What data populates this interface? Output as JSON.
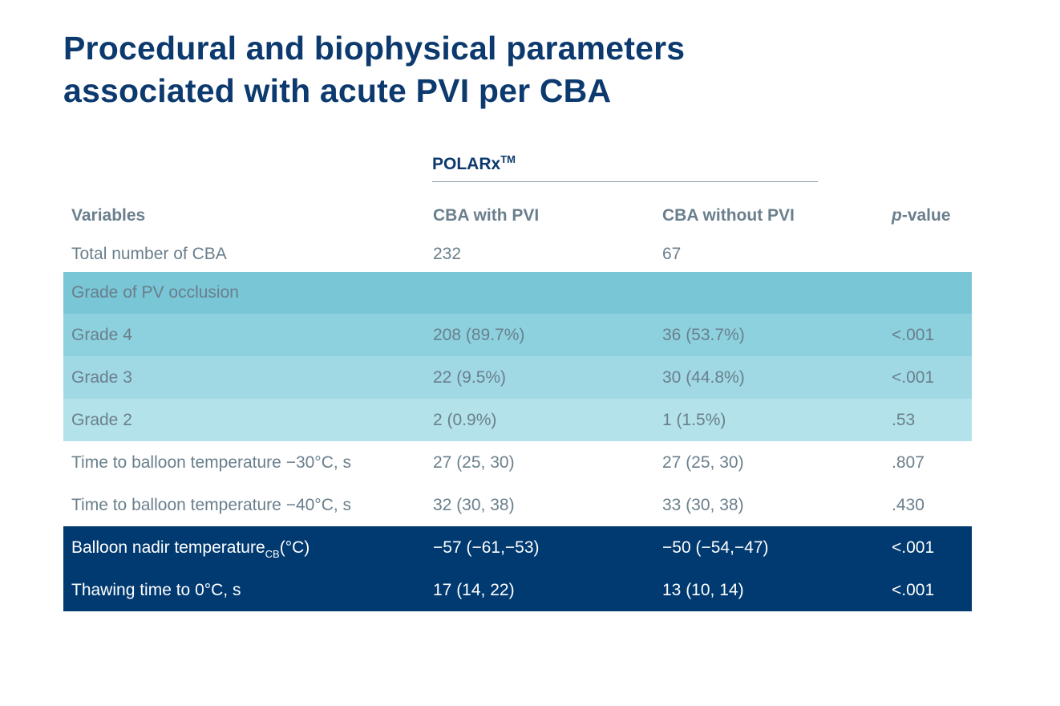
{
  "title": {
    "line1": "Procedural and biophysical parameters",
    "line2": "associated with acute PVI per CBA"
  },
  "group": {
    "label": "POLARx",
    "superscript": "TM"
  },
  "columns": {
    "variables": "Variables",
    "with_pvi": "CBA with PVI",
    "without_pvi": "CBA without PVI",
    "p_prefix": "p",
    "p_suffix": "-value"
  },
  "rows": {
    "total": {
      "label": "Total number of CBA",
      "with": "232",
      "without": "67",
      "p": ""
    },
    "grade_header": {
      "label": "Grade of PV occlusion"
    },
    "grade4": {
      "label": "Grade 4",
      "with": "208 (89.7%)",
      "without": "36 (53.7%)",
      "p": "<.001"
    },
    "grade3": {
      "label": "Grade 3",
      "with": "22 (9.5%)",
      "without": "30 (44.8%)",
      "p": "<.001"
    },
    "grade2": {
      "label": "Grade 2",
      "with": "2 (0.9%)",
      "without": "1 (1.5%)",
      "p": ".53"
    },
    "time30": {
      "label": "Time to balloon temperature −30°C, s",
      "with": "27 (25, 30)",
      "without": "27 (25, 30)",
      "p": ".807"
    },
    "time40": {
      "label": "Time to balloon temperature −40°C, s",
      "with": "32 (30, 38)",
      "without": "33 (30, 38)",
      "p": ".430"
    },
    "nadir": {
      "label": "Balloon nadir temperature",
      "label_sub": "CB",
      "label_suffix": "(°C)",
      "with": "−57 (−61,−53)",
      "without": "−50 (−54,−47)",
      "p": "<.001"
    },
    "thaw": {
      "label": "Thawing time to 0°C, s",
      "with": "17 (14, 22)",
      "without": "13 (10, 14)",
      "p": "<.001"
    }
  },
  "colors": {
    "title": "#0d3a6e",
    "text": "#6a7f8c",
    "band_header": "#79c6d6",
    "band_grade4": "#8dd1df",
    "band_grade3": "#a0d9e4",
    "band_grade2": "#b3e2ea",
    "dark_band": "#003a70"
  }
}
